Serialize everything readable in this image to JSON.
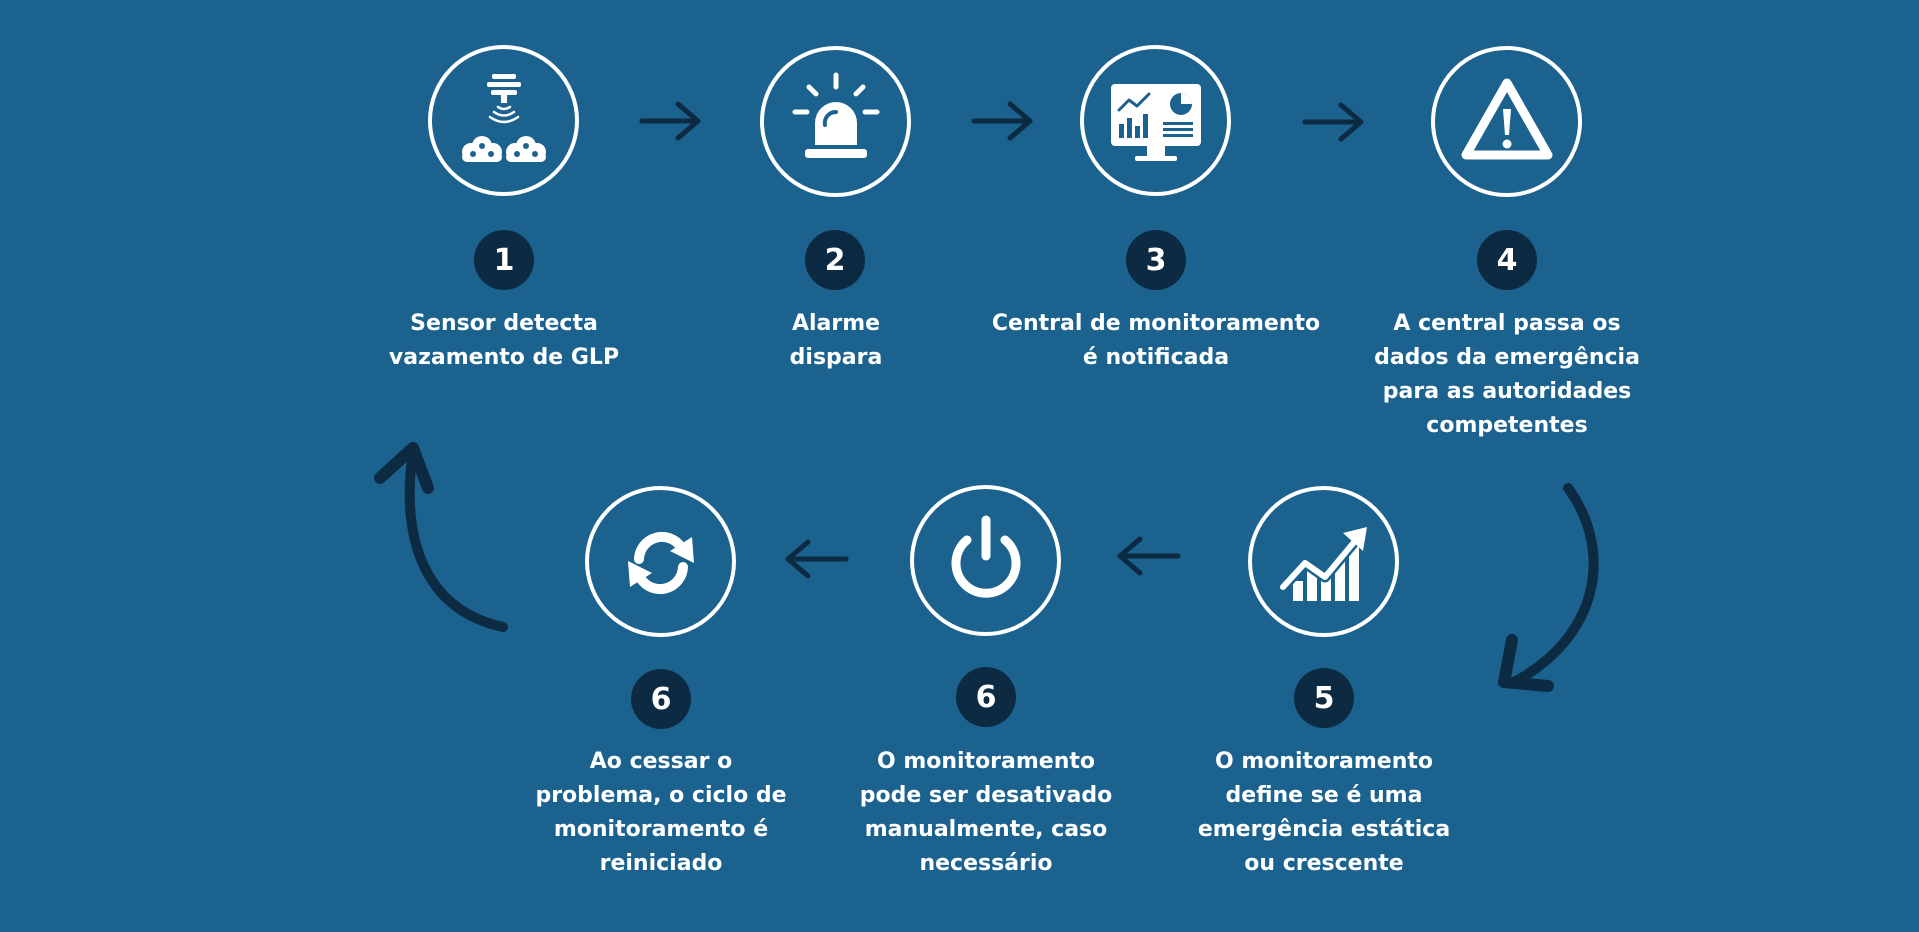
{
  "steps": [
    {
      "number": "1",
      "icon": "gas-sensor-icon",
      "text_lines": [
        "Sensor detecta",
        "vazamento de GLP"
      ]
    },
    {
      "number": "2",
      "icon": "siren-alarm-icon",
      "text_lines": [
        "Alarme",
        "dispara"
      ]
    },
    {
      "number": "3",
      "icon": "monitor-dashboard-icon",
      "text_lines": [
        "Central de monitoramento",
        "é notificada"
      ]
    },
    {
      "number": "4",
      "icon": "warning-triangle-icon",
      "text_lines": [
        "A central passa os",
        "dados da emergência",
        "para as autoridades",
        "competentes"
      ]
    },
    {
      "number": "5",
      "icon": "growth-chart-icon",
      "text_lines": [
        "O monitoramento",
        "define se é uma",
        "emergência estática",
        "ou crescente"
      ]
    },
    {
      "number": "6",
      "icon": "power-button-icon",
      "text_lines": [
        "O monitoramento",
        "pode ser desativado",
        "manualmente, caso",
        "necessário"
      ]
    },
    {
      "number": "6",
      "icon": "refresh-cycle-icon",
      "text_lines": [
        "Ao cessar o",
        "problema, o ciclo de",
        "monitoramento é",
        "reiniciado"
      ]
    }
  ],
  "colors": {
    "background": "#1b628f",
    "icon_and_text": "#ffffff",
    "badge_and_arrow": "#0c2a42"
  }
}
